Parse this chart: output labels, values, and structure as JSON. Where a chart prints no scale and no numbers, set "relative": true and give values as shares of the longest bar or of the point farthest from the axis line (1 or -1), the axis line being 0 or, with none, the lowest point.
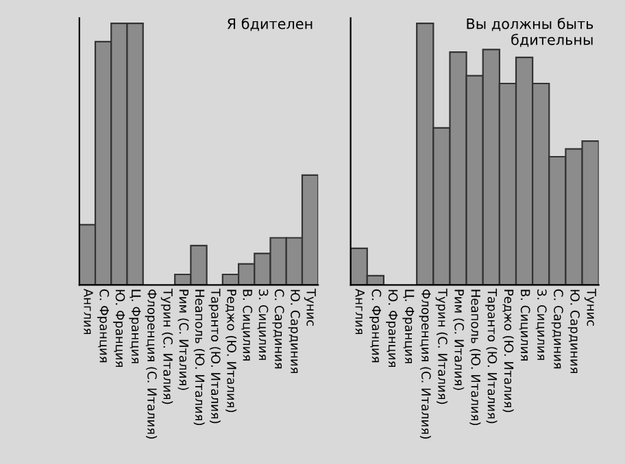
{
  "chart_data": [
    {
      "type": "bar",
      "title": "Я бдителен",
      "relative": true,
      "categories": [
        "Англия",
        "С. Франция",
        "Ю. Франция",
        "Ц. Франция",
        "Флоренция (С. Италия)",
        "Турин (С. Италия)",
        "Рим (С. Италия)",
        "Неаполь (Ю. Италия)",
        "Таранто (Ю. Италия)",
        "Реджо (Ю. Италия)",
        "В. Сицилия",
        "З. Сицилия",
        "С. Сардиния",
        "Ю. Сардиния",
        "Тунис"
      ],
      "series": [
        {
          "color": "#8c8c8c",
          "values": [
            0.23,
            0.93,
            1,
            1,
            0,
            0,
            0.04,
            0.15,
            0,
            0.04,
            0.08,
            0.12,
            0.18,
            0.18,
            0.42
          ]
        }
      ]
    },
    {
      "type": "bar",
      "title": "Вы должны быть\nбдительны",
      "relative": true,
      "categories": [
        "Англия",
        "С. Франция",
        "Ю. Франция",
        "Ц. Франция",
        "Флоренция (С. Италия)",
        "Турин (С. Италия)",
        "Рим (С. Италия)",
        "Неаполь (Ю. Италия)",
        "Таранто (Ю. Италия)",
        "Реджо (Ю. Италия)",
        "В. Сицилия",
        "З. Сицилия",
        "С. Сардиния",
        "Ю. Сардиния",
        "Тунис"
      ],
      "series": [
        {
          "color": "#8c8c8c",
          "values": [
            0.14,
            0.035,
            0,
            0,
            1,
            0.6,
            0.89,
            0.8,
            0.9,
            0.77,
            0.87,
            0.77,
            0.49,
            0.52,
            0.55
          ]
        }
      ]
    }
  ]
}
